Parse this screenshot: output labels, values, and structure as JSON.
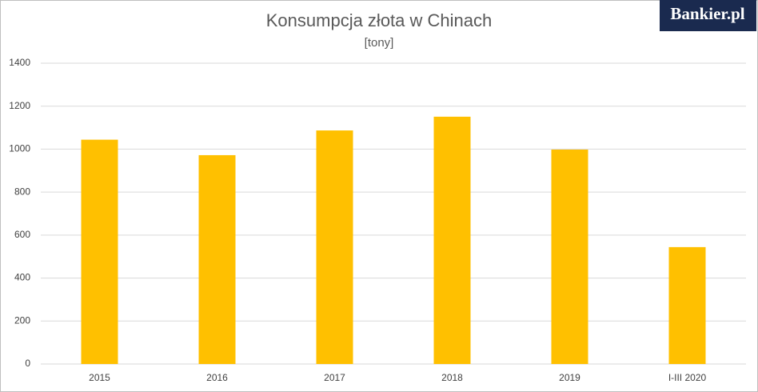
{
  "logo": "Bankier.pl",
  "chart_data": {
    "type": "bar",
    "title": "Konsumpcja złota w Chinach",
    "subtitle": "[tony]",
    "categories": [
      "2015",
      "2016",
      "2017",
      "2018",
      "2019",
      "I-III 2020"
    ],
    "values": [
      1044,
      972,
      1087,
      1151,
      998,
      544
    ],
    "color": "#ffc000",
    "ylim": [
      0,
      1400
    ],
    "yticks": [
      0,
      200,
      400,
      600,
      800,
      1000,
      1200,
      1400
    ],
    "grid": true
  }
}
